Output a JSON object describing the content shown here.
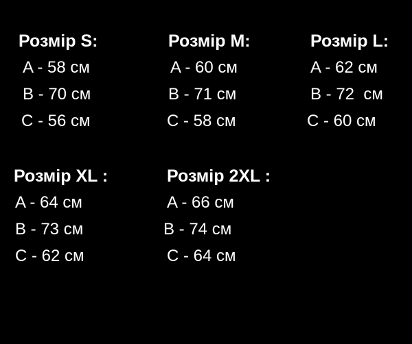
{
  "background_color": "#000000",
  "text_color": "#ffffff",
  "sizes": [
    {
      "title": "Розмір S:",
      "lines": [
        "A - 58 см",
        "B - 70 см",
        "C - 56 см"
      ]
    },
    {
      "title": "Розмір M:",
      "lines": [
        "A - 60 см",
        "B - 71 см",
        "C - 58 см"
      ]
    },
    {
      "title": "Розмір L:",
      "lines": [
        "A - 62 см",
        "B - 72  см",
        "C - 60 см"
      ]
    },
    {
      "title": "Розмір XL :",
      "lines": [
        "A - 64 см",
        "B - 73 см",
        "C - 62 см"
      ]
    },
    {
      "title": "Розмір 2XL :",
      "lines": [
        "A - 66 см",
        "B - 74 см",
        "C - 64 см"
      ]
    }
  ]
}
